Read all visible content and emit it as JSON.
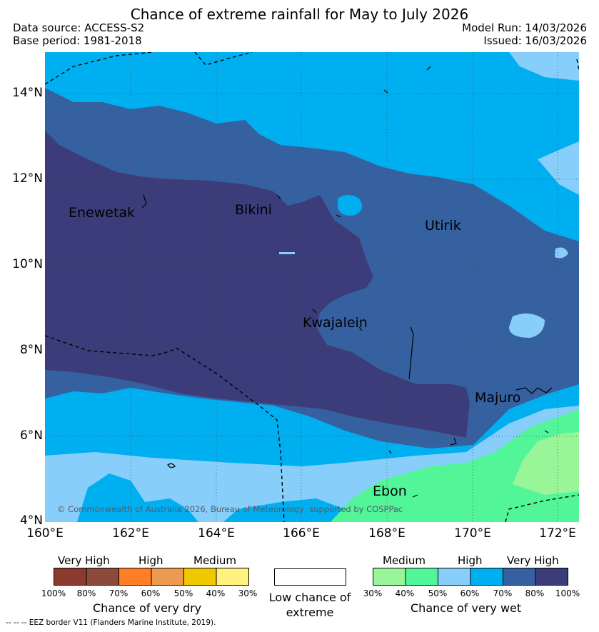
{
  "title": "Chance of extreme rainfall for May to July 2026",
  "meta": {
    "data_source": "Data source: ACCESS-S2",
    "base_period": "Base period: 1981-2018",
    "model_run": "Model Run: 14/03/2026",
    "issued": "Issued: 16/03/2026"
  },
  "axes": {
    "lat_ticks": [
      "14°N",
      "12°N",
      "10°N",
      "8°N",
      "6°N",
      "4°N"
    ],
    "lon_ticks": [
      "160°E",
      "162°E",
      "164°E",
      "166°E",
      "168°E",
      "170°E",
      "172°E"
    ]
  },
  "places": {
    "enewetak": "Enewetak",
    "bikini": "Bikini",
    "utirik": "Utirik",
    "kwajalein": "Kwajalein",
    "majuro": "Majuro",
    "ebon": "Ebon"
  },
  "copyright": "© Commonwealth of Australia 2026, Bureau of Meteorology, supported by COSPPac",
  "legend_dry": {
    "headings": [
      "Very High",
      "High",
      "Medium"
    ],
    "ticks": [
      "100%",
      "80%",
      "70%",
      "60%",
      "50%",
      "40%",
      "30%"
    ],
    "colors": [
      "#8b3a2f",
      "#8b4a3a",
      "#ff7f27",
      "#eb9a4f",
      "#f0c800",
      "#fff080"
    ],
    "title": "Chance of very dry"
  },
  "legend_low": {
    "label": "Low chance of extreme",
    "color": "#ffffff"
  },
  "legend_wet": {
    "headings": [
      "Medium",
      "High",
      "Very High"
    ],
    "ticks": [
      "30%",
      "40%",
      "50%",
      "60%",
      "70%",
      "80%",
      "100%"
    ],
    "colors": [
      "#98f598",
      "#52f598",
      "#87cefa",
      "#00afef",
      "#3661a1",
      "#3c3c7a"
    ],
    "title": "Chance of very wet"
  },
  "eez_note": "--  --  -- EEZ border V11 (Flanders Marine Institute, 2019)."
}
